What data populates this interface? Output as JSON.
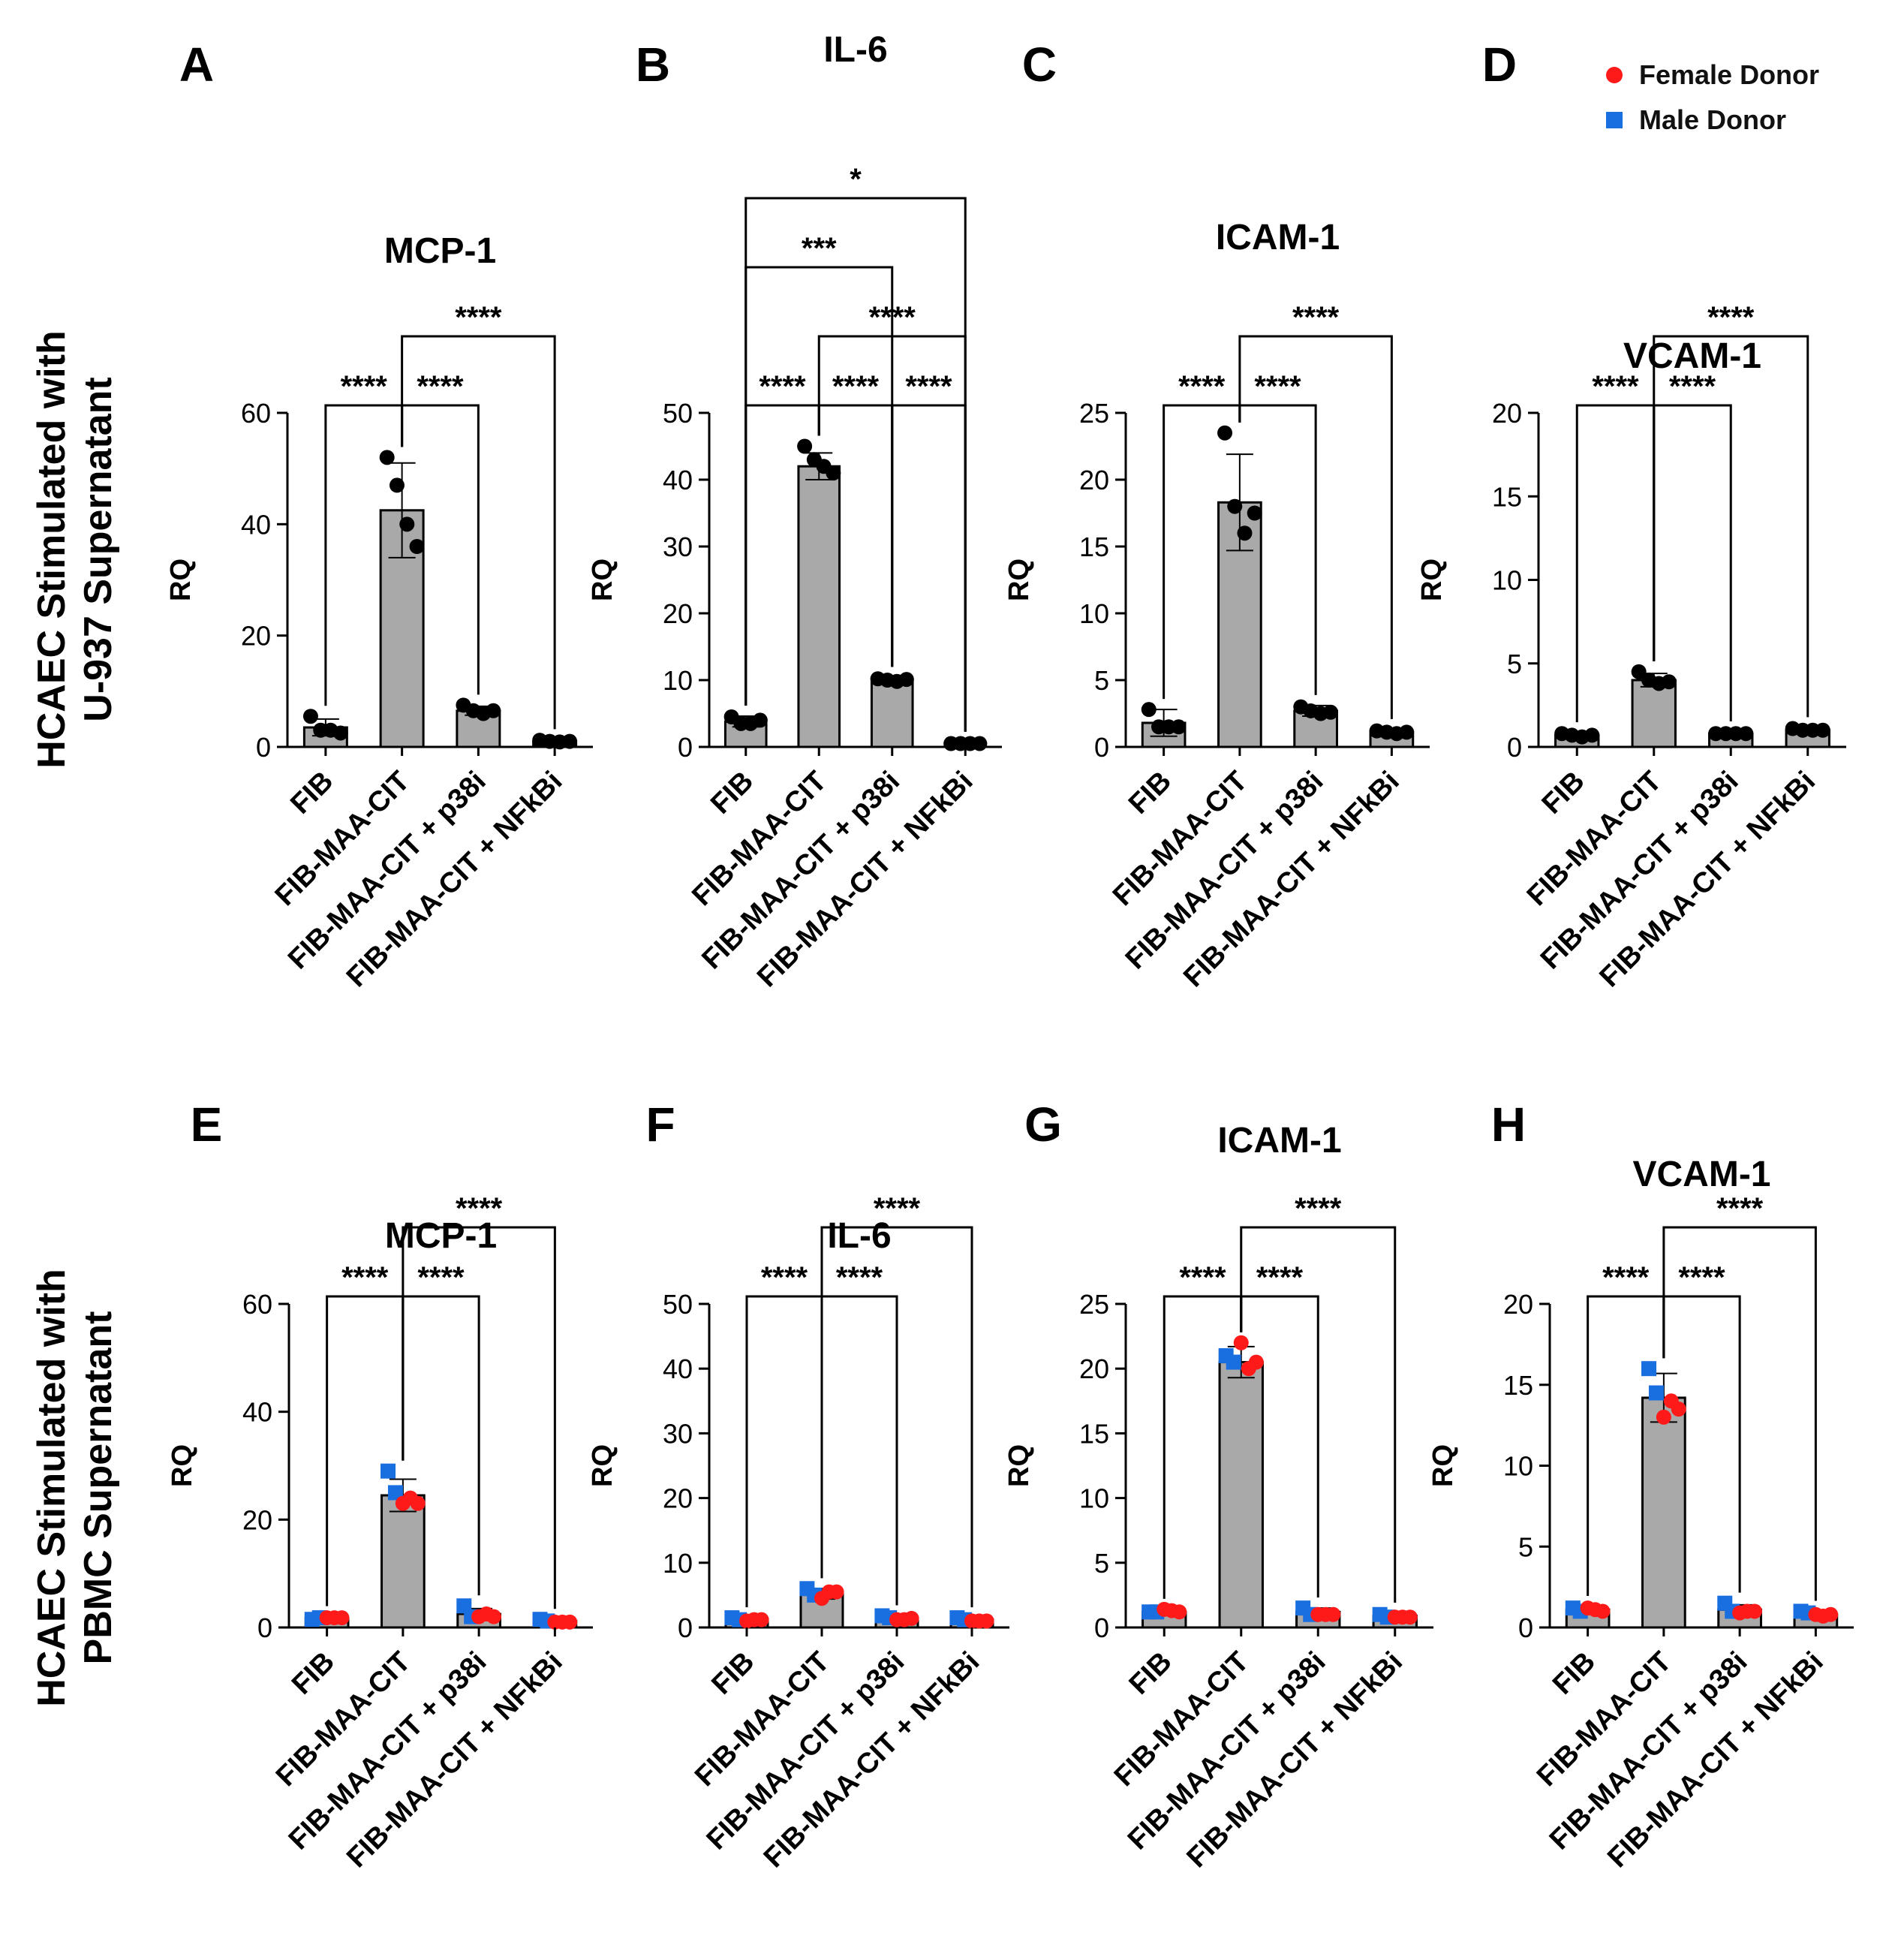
{
  "figure": {
    "row_labels": [
      [
        "HCAEC Stimulated with",
        "U-937 Supernatant"
      ],
      [
        "HCAEC Stimulated with",
        "PBMC Supernatant"
      ]
    ],
    "legend": [
      {
        "label": "Female Donor",
        "color": "#ff1a1a",
        "shape": "circle"
      },
      {
        "label": "Male Donor",
        "color": "#1a6fe0",
        "shape": "square"
      }
    ]
  },
  "chart_data": [
    {
      "panel": "A",
      "type": "bar",
      "title": "MCP-1",
      "ylabel": "RQ",
      "ylim": [
        0,
        60
      ],
      "yticks": [
        0,
        20,
        40,
        60
      ],
      "categories": [
        "FIB",
        "FIB-MAA-CIT",
        "FIB-MAA-CIT + p38i",
        "FIB-MAA-CIT + NFkBi"
      ],
      "values": [
        3.5,
        42.5,
        6.5,
        1.0
      ],
      "errors": [
        1.5,
        8.5,
        0.8,
        0.3
      ],
      "points": [
        [
          5.5,
          3.0,
          3.0,
          2.5
        ],
        [
          52,
          47,
          40,
          36
        ],
        [
          7.5,
          6.5,
          6.0,
          6.5
        ],
        [
          1.2,
          1.0,
          0.9,
          1.0
        ]
      ],
      "point_colors": "black",
      "comparisons": [
        {
          "from": 1,
          "to": 2,
          "label": "****"
        },
        {
          "from": 0,
          "to": 1,
          "label": "****"
        },
        {
          "from": 1,
          "to": 3,
          "label": "****"
        }
      ]
    },
    {
      "panel": "B",
      "type": "bar",
      "title": "IL-6",
      "ylabel": "RQ",
      "ylim": [
        0,
        50
      ],
      "yticks": [
        0,
        10,
        20,
        30,
        40,
        50
      ],
      "categories": [
        "FIB",
        "FIB-MAA-CIT",
        "FIB-MAA-CIT + p38i",
        "FIB-MAA-CIT + NFkBi"
      ],
      "values": [
        3.8,
        42.0,
        10.0,
        0.5
      ],
      "errors": [
        0.8,
        2.0,
        0.4,
        0.2
      ],
      "points": [
        [
          4.5,
          3.5,
          3.5,
          4.0
        ],
        [
          45,
          43,
          42,
          41
        ],
        [
          10.2,
          10.0,
          9.8,
          10.1
        ],
        [
          0.5,
          0.5,
          0.5,
          0.5
        ]
      ],
      "point_colors": "black",
      "comparisons": [
        {
          "from": 0,
          "to": 3,
          "label": "*"
        },
        {
          "from": 1,
          "to": 3,
          "label": "****"
        },
        {
          "from": 0,
          "to": 2,
          "label": "***"
        },
        {
          "from": 1,
          "to": 2,
          "label": "****"
        },
        {
          "from": 0,
          "to": 1,
          "label": "****"
        },
        {
          "from": 2,
          "to": 3,
          "label": "****"
        }
      ]
    },
    {
      "panel": "C",
      "type": "bar",
      "title": "ICAM-1",
      "ylabel": "RQ",
      "ylim": [
        0,
        25
      ],
      "yticks": [
        0,
        5,
        10,
        15,
        20,
        25
      ],
      "categories": [
        "FIB",
        "FIB-MAA-CIT",
        "FIB-MAA-CIT + p38i",
        "FIB-MAA-CIT + NFkBi"
      ],
      "values": [
        1.8,
        18.3,
        2.7,
        1.1
      ],
      "errors": [
        1.0,
        3.6,
        0.4,
        0.2
      ],
      "points": [
        [
          2.8,
          1.5,
          1.5,
          1.5
        ],
        [
          23.5,
          18,
          16,
          17.5
        ],
        [
          3.0,
          2.7,
          2.5,
          2.6
        ],
        [
          1.2,
          1.1,
          1.0,
          1.1
        ]
      ],
      "point_colors": "black",
      "comparisons": [
        {
          "from": 1,
          "to": 2,
          "label": "****"
        },
        {
          "from": 0,
          "to": 1,
          "label": "****"
        },
        {
          "from": 1,
          "to": 3,
          "label": "****"
        }
      ]
    },
    {
      "panel": "D",
      "type": "bar",
      "title": "VCAM-1",
      "ylabel": "RQ",
      "ylim": [
        0,
        20
      ],
      "yticks": [
        0,
        5,
        10,
        15,
        20
      ],
      "categories": [
        "FIB",
        "FIB-MAA-CIT",
        "FIB-MAA-CIT + p38i",
        "FIB-MAA-CIT + NFkBi"
      ],
      "values": [
        0.7,
        4.0,
        0.8,
        1.0
      ],
      "errors": [
        0.15,
        0.4,
        0.1,
        0.15
      ],
      "points": [
        [
          0.8,
          0.7,
          0.6,
          0.7
        ],
        [
          4.5,
          4.0,
          3.8,
          3.9
        ],
        [
          0.8,
          0.8,
          0.8,
          0.8
        ],
        [
          1.1,
          1.0,
          1.0,
          1.0
        ]
      ],
      "point_colors": "black",
      "comparisons": [
        {
          "from": 1,
          "to": 2,
          "label": "****"
        },
        {
          "from": 0,
          "to": 1,
          "label": "****"
        },
        {
          "from": 1,
          "to": 3,
          "label": "****"
        }
      ]
    },
    {
      "panel": "E",
      "type": "bar",
      "title": "MCP-1",
      "ylabel": "RQ",
      "ylim": [
        0,
        60
      ],
      "yticks": [
        0,
        20,
        40,
        60
      ],
      "categories": [
        "FIB",
        "FIB-MAA-CIT",
        "FIB-MAA-CIT + p38i",
        "FIB-MAA-CIT + NFkBi"
      ],
      "values": [
        1.8,
        24.5,
        2.5,
        1.2
      ],
      "errors": [
        0.2,
        3.0,
        1.0,
        0.3
      ],
      "points": [
        [
          1.5,
          1.8,
          1.8,
          1.8,
          1.8
        ],
        [
          29,
          25,
          23,
          24,
          23
        ],
        [
          4.0,
          2.0,
          2.0,
          2.5,
          2.0
        ],
        [
          1.5,
          1.2,
          1.0,
          1.0,
          1.0
        ]
      ],
      "point_colors": [
        "male",
        "male",
        "female",
        "female",
        "female"
      ],
      "comparisons": [
        {
          "from": 1,
          "to": 2,
          "label": "****"
        },
        {
          "from": 0,
          "to": 1,
          "label": "****"
        },
        {
          "from": 1,
          "to": 3,
          "label": "****"
        }
      ]
    },
    {
      "panel": "F",
      "type": "bar",
      "title": "IL-6",
      "ylabel": "RQ",
      "ylim": [
        0,
        50
      ],
      "yticks": [
        0,
        10,
        20,
        30,
        40,
        50
      ],
      "categories": [
        "FIB",
        "FIB-MAA-CIT",
        "FIB-MAA-CIT + p38i",
        "FIB-MAA-CIT + NFkBi"
      ],
      "values": [
        1.3,
        5.2,
        1.5,
        1.2
      ],
      "errors": [
        0.2,
        0.8,
        0.3,
        0.2
      ],
      "points": [
        [
          1.5,
          1.2,
          1.0,
          1.2,
          1.2
        ],
        [
          6.0,
          5.0,
          4.5,
          5.5,
          5.5
        ],
        [
          1.8,
          1.5,
          1.2,
          1.2,
          1.4
        ],
        [
          1.5,
          1.2,
          1.0,
          1.0,
          1.0
        ]
      ],
      "point_colors": [
        "male",
        "male",
        "female",
        "female",
        "female"
      ],
      "comparisons": [
        {
          "from": 1,
          "to": 2,
          "label": "****"
        },
        {
          "from": 0,
          "to": 1,
          "label": "****"
        },
        {
          "from": 1,
          "to": 3,
          "label": "****"
        }
      ]
    },
    {
      "panel": "G",
      "type": "bar",
      "title": "ICAM-1",
      "ylabel": "RQ",
      "ylim": [
        0,
        25
      ],
      "yticks": [
        0,
        5,
        10,
        15,
        20,
        25
      ],
      "categories": [
        "FIB",
        "FIB-MAA-CIT",
        "FIB-MAA-CIT + p38i",
        "FIB-MAA-CIT + NFkBi"
      ],
      "values": [
        1.2,
        20.5,
        1.2,
        0.9
      ],
      "errors": [
        0.2,
        1.2,
        0.3,
        0.2
      ],
      "points": [
        [
          1.2,
          1.2,
          1.4,
          1.3,
          1.2
        ],
        [
          21,
          20.5,
          22,
          20,
          20.5
        ],
        [
          1.5,
          1.0,
          1.0,
          1.0,
          1.0
        ],
        [
          1.0,
          0.8,
          0.8,
          0.8,
          0.8
        ]
      ],
      "point_colors": [
        "male",
        "male",
        "female",
        "female",
        "female"
      ],
      "comparisons": [
        {
          "from": 1,
          "to": 2,
          "label": "****"
        },
        {
          "from": 0,
          "to": 1,
          "label": "****"
        },
        {
          "from": 1,
          "to": 3,
          "label": "****"
        }
      ]
    },
    {
      "panel": "H",
      "type": "bar",
      "title": "VCAM-1",
      "ylabel": "RQ",
      "ylim": [
        0,
        20
      ],
      "yticks": [
        0,
        5,
        10,
        15,
        20
      ],
      "categories": [
        "FIB",
        "FIB-MAA-CIT",
        "FIB-MAA-CIT + p38i",
        "FIB-MAA-CIT + NFkBi"
      ],
      "values": [
        1.1,
        14.2,
        1.1,
        0.8
      ],
      "errors": [
        0.2,
        1.5,
        0.3,
        0.2
      ],
      "points": [
        [
          1.2,
          1.0,
          1.2,
          1.1,
          1.0
        ],
        [
          16,
          14.5,
          13,
          14,
          13.5
        ],
        [
          1.5,
          1.0,
          0.9,
          1.0,
          1.0
        ],
        [
          1.0,
          0.9,
          0.8,
          0.7,
          0.8
        ]
      ],
      "point_colors": [
        "male",
        "male",
        "female",
        "female",
        "female"
      ],
      "comparisons": [
        {
          "from": 1,
          "to": 2,
          "label": "****"
        },
        {
          "from": 0,
          "to": 1,
          "label": "****"
        },
        {
          "from": 1,
          "to": 3,
          "label": "****"
        }
      ]
    }
  ]
}
